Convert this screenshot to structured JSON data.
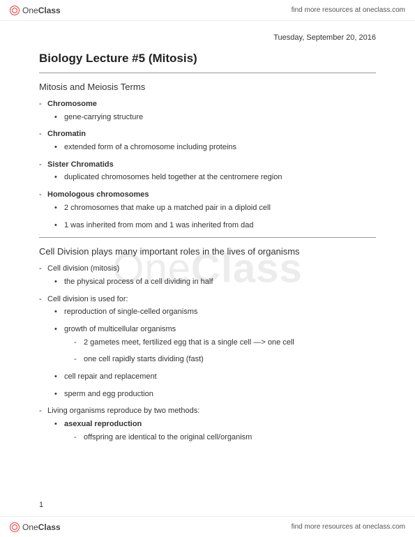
{
  "brand": {
    "part1": "One",
    "part2": "Class"
  },
  "topbar_link": "find more resources at oneclass.com",
  "bottombar_link": "find more resources at oneclass.com",
  "watermark": {
    "part1": "One",
    "part2": "Class"
  },
  "date": "Tuesday, September 20, 2016",
  "title": "Biology Lecture #5 (Mitosis)",
  "section1": {
    "heading": "Mitosis and Meiosis Terms",
    "items": [
      {
        "term": "Chromosome",
        "subs": [
          "gene-carrying structure"
        ]
      },
      {
        "term": "Chromatin",
        "subs": [
          "extended form of a chromosome including proteins"
        ]
      },
      {
        "term": "Sister Chromatids",
        "subs": [
          "duplicated chromosomes held together at the centromere region"
        ]
      },
      {
        "term": "Homologous chromosomes",
        "subs": [
          "2 chromosomes that make up a matched pair in a diploid cell",
          "1 was inherited from mom and 1 was inherited from dad"
        ]
      }
    ]
  },
  "section2": {
    "heading": "Cell Division plays many important roles in the lives of organisms",
    "items": {
      "i0": {
        "label": "Cell division (mitosis)",
        "subs": [
          "the physical process of a cell dividing in half"
        ]
      },
      "i1": {
        "label": "Cell division is used for:",
        "subs": [
          "reproduction of single-celled organisms",
          "growth of multicellular organisms",
          "cell repair and replacement",
          "sperm and egg production"
        ],
        "sub1_details": [
          "2 gametes meet, fertilized egg that is a single cell —> one cell",
          "one cell rapidly starts dividing (fast)"
        ]
      },
      "i2": {
        "label": "Living organisms reproduce by two methods:",
        "subs_bold": [
          "asexual reproduction"
        ],
        "sub0_details": [
          "offspring are identical to the original cell/organism"
        ]
      }
    }
  },
  "page_number": "1",
  "colors": {
    "text": "#333333",
    "rule": "#999999",
    "brand_accent": "#e53935",
    "watermark": "rgba(200,200,200,0.35)",
    "background": "#ffffff"
  },
  "typography": {
    "title_size_pt": 17,
    "body_size_pt": 11,
    "heading_size_pt": 13,
    "date_size_pt": 11
  }
}
